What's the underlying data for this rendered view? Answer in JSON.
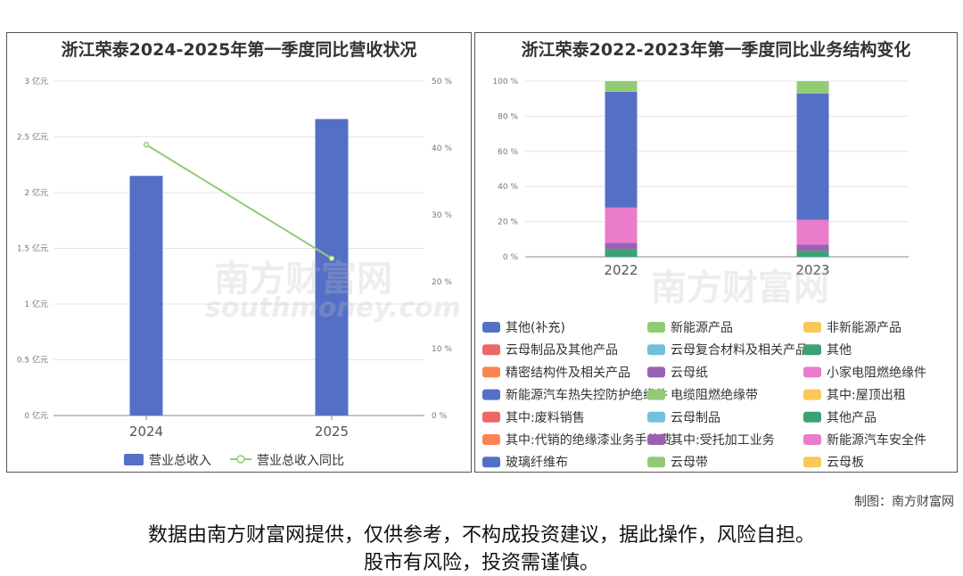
{
  "chart_data": [
    {
      "type": "bar",
      "title": "浙江荣泰2024-2025年第一季度同比营收状况",
      "categories": [
        "2024",
        "2025"
      ],
      "series": [
        {
          "name": "营业总收入",
          "kind": "bar",
          "axis": "left",
          "values": [
            2.15,
            2.66
          ]
        },
        {
          "name": "营业总收入同比",
          "kind": "line",
          "axis": "right",
          "values": [
            40.5,
            23.5
          ]
        }
      ],
      "y_left": {
        "min": 0,
        "max": 3,
        "ticks": [
          "0 亿元",
          "0.5 亿元",
          "1 亿元",
          "1.5 亿元",
          "2 亿元",
          "2.5 亿元",
          "3 亿元"
        ]
      },
      "y_right": {
        "min": 0,
        "max": 50,
        "ticks": [
          "0 %",
          "10 %",
          "20 %",
          "30 %",
          "40 %",
          "50 %"
        ]
      },
      "grid": true,
      "legend": "bottom",
      "colors": {
        "bar": "#5470c6",
        "line": "#91cc75"
      }
    },
    {
      "type": "bar",
      "stacked": true,
      "title": "浙江荣泰2022-2023年第一季度同比业务结构变化",
      "categories": [
        "2022",
        "2023"
      ],
      "ylim": [
        0,
        100
      ],
      "y_ticks": [
        "0 %",
        "20 %",
        "40 %",
        "60 %",
        "80 %",
        "100 %"
      ],
      "grid": true,
      "legend": "bottom",
      "series": [
        {
          "name": "其他(补充)",
          "color": "#5470c6",
          "values": [
            0,
            0
          ]
        },
        {
          "name": "新能源产品",
          "color": "#91cc75",
          "values": [
            0,
            0
          ]
        },
        {
          "name": "非新能源产品",
          "color": "#fac858",
          "values": [
            0,
            0
          ]
        },
        {
          "name": "云母制品及其他产品",
          "color": "#ee6666",
          "values": [
            0,
            0
          ]
        },
        {
          "name": "云母复合材料及相关产品",
          "color": "#73c0de",
          "values": [
            0,
            0
          ]
        },
        {
          "name": "其他",
          "color": "#3ba272",
          "values": [
            4.5,
            3.5
          ]
        },
        {
          "name": "精密结构件及相关产品",
          "color": "#fc8452",
          "values": [
            0,
            0
          ]
        },
        {
          "name": "云母纸",
          "color": "#9a60b4",
          "values": [
            3.5,
            3.5
          ]
        },
        {
          "name": "小家电阻燃绝缘件",
          "color": "#ea7ccc",
          "values": [
            20,
            14
          ]
        },
        {
          "name": "新能源汽车热失控防护绝缘件",
          "color": "#5470c6",
          "values": [
            66,
            72
          ]
        },
        {
          "name": "电缆阻燃绝缘带",
          "color": "#91cc75",
          "values": [
            6,
            7
          ]
        },
        {
          "name": "其中:屋顶出租",
          "color": "#fac858",
          "values": [
            0,
            0
          ]
        },
        {
          "name": "其中:废料销售",
          "color": "#ee6666",
          "values": [
            0,
            0
          ]
        },
        {
          "name": "云母制品",
          "color": "#73c0de",
          "values": [
            0,
            0
          ]
        },
        {
          "name": "其他产品",
          "color": "#3ba272",
          "values": [
            0,
            0
          ]
        },
        {
          "name": "其中:代销的绝缘漆业务手续费",
          "color": "#fc8452",
          "values": [
            0,
            0
          ]
        },
        {
          "name": "其中:受托加工业务",
          "color": "#9a60b4",
          "values": [
            0,
            0
          ]
        },
        {
          "name": "新能源汽车安全件",
          "color": "#ea7ccc",
          "values": [
            0,
            0
          ]
        },
        {
          "name": "玻璃纤维布",
          "color": "#5470c6",
          "values": [
            0,
            0
          ]
        },
        {
          "name": "云母带",
          "color": "#91cc75",
          "values": [
            0,
            0
          ]
        },
        {
          "name": "云母板",
          "color": "#fac858",
          "values": [
            0,
            0
          ]
        }
      ]
    }
  ],
  "footer": {
    "credit": "制图：南方财富网",
    "disclaimer_line1": "数据由南方财富网提供，仅供参考，不构成投资建议，据此操作，风险自担。",
    "disclaimer_line2": "股市有风险，投资需谨慎。"
  },
  "watermark": {
    "brand": "南方财富网",
    "site": "southmoney.com"
  }
}
